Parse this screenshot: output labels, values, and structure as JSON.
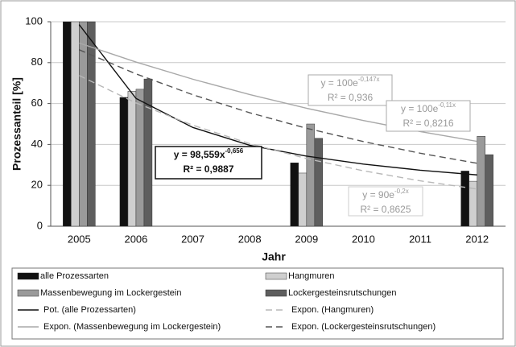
{
  "chart_data": {
    "type": "bar",
    "y_label": "Prozessanteil [%]",
    "x_label": "Jahr",
    "categories": [
      "2005",
      "2006",
      "2007",
      "2008",
      "2009",
      "2010",
      "2011",
      "2012"
    ],
    "series": [
      {
        "name": "alle Prozessarten",
        "color": "#111111",
        "values": [
          100,
          63,
          null,
          null,
          31,
          null,
          null,
          27
        ]
      },
      {
        "name": "Hangmuren",
        "color": "#cfcfcf",
        "values": [
          100,
          66,
          null,
          null,
          26,
          null,
          null,
          22
        ]
      },
      {
        "name": "Massenbewegung im Lockergestein",
        "color": "#9a9a9a",
        "values": [
          100,
          67,
          null,
          null,
          50,
          null,
          null,
          44
        ]
      },
      {
        "name": "Lockergesteinsrutschungen",
        "color": "#5e5e5e",
        "values": [
          100,
          72,
          null,
          null,
          43,
          null,
          null,
          35
        ]
      }
    ],
    "trendlines": [
      {
        "name": "Pot. (alle Prozessarten)",
        "color": "#111111",
        "style": "solid",
        "values": [
          98.6,
          62.5,
          48.3,
          39.6,
          34.3,
          30.4,
          27.4,
          25.1
        ]
      },
      {
        "name": "Expon. (Hangmuren)",
        "color": "#b8b8b8",
        "style": "dashed",
        "values": [
          73.7,
          60.3,
          49.4,
          40.4,
          33.1,
          27.1,
          22.2,
          18.2
        ]
      },
      {
        "name": "Expon. (Massenbewegung im Lockergestein)",
        "color": "#a8a8a8",
        "style": "solid",
        "values": [
          89.6,
          80.3,
          71.9,
          64.4,
          57.7,
          51.7,
          46.3,
          41.5
        ]
      },
      {
        "name": "Expon. (Lockergesteinsrutschungen)",
        "color": "#555555",
        "style": "dashed",
        "values": [
          86.3,
          74.5,
          64.3,
          55.5,
          47.9,
          41.4,
          35.7,
          30.8
        ]
      }
    ],
    "annotations": [
      {
        "equation": "y = 98,559x",
        "exponent": "-0,656",
        "r2": "R² = 0,9887"
      },
      {
        "equation": "y = 100e",
        "exponent": "-0,147x",
        "r2": "R² = 0,936"
      },
      {
        "equation": "y = 100e",
        "exponent": "-0,11x",
        "r2": "R² = 0,8216"
      },
      {
        "equation": "y = 90e",
        "exponent": "-0,2x",
        "r2": "R² = 0,8625"
      }
    ],
    "ylim": [
      0,
      100
    ],
    "yticks": [
      0,
      20,
      40,
      60,
      80,
      100
    ],
    "grid": true
  }
}
